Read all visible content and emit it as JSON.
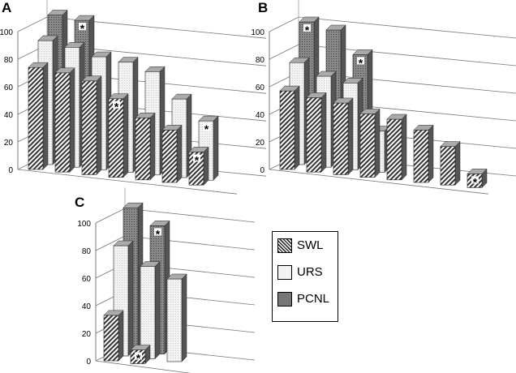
{
  "chart_data": [
    {
      "type": "bar",
      "title": "A",
      "ylim": [
        0,
        100
      ],
      "yticks": [
        0,
        20,
        40,
        60,
        80,
        100
      ],
      "series": [
        {
          "name": "SWL",
          "values": [
            74,
            72,
            68,
            57,
            45,
            38,
            24
          ],
          "stars": [
            3,
            6
          ]
        },
        {
          "name": "URS",
          "values": [
            90,
            87,
            82,
            80,
            75,
            57,
            43
          ],
          "stars": [
            6
          ]
        },
        {
          "name": "PCNL",
          "values": [
            105,
            103,
            null,
            null,
            null,
            null,
            null
          ],
          "stars": [
            1
          ]
        }
      ]
    },
    {
      "type": "bar",
      "title": "B",
      "ylim": [
        0,
        100
      ],
      "yticks": [
        0,
        20,
        40,
        60,
        80,
        100
      ],
      "series": [
        {
          "name": "SWL",
          "values": [
            57,
            54,
            52,
            46,
            44,
            38,
            28,
            10
          ],
          "stars": [
            7
          ]
        },
        {
          "name": "URS",
          "values": [
            74,
            66,
            63,
            30,
            null,
            null,
            null,
            null
          ],
          "stars": [
            3
          ]
        },
        {
          "name": "PCNL",
          "values": [
            100,
            96,
            80,
            null,
            null,
            null,
            null,
            null
          ],
          "stars": [
            0,
            2
          ]
        }
      ]
    },
    {
      "type": "bar",
      "title": "C",
      "ylim": [
        0,
        100
      ],
      "yticks": [
        0,
        20,
        40,
        60,
        80,
        100
      ],
      "series": [
        {
          "name": "SWL",
          "values": [
            33,
            10,
            null
          ],
          "stars": [
            1
          ]
        },
        {
          "name": "URS",
          "values": [
            80,
            67,
            60
          ],
          "stars": []
        },
        {
          "name": "PCNL",
          "values": [
            104,
            93,
            null
          ],
          "stars": [
            1
          ]
        }
      ]
    }
  ],
  "legend": [
    {
      "label": "SWL"
    },
    {
      "label": "URS"
    },
    {
      "label": "PCNL"
    }
  ],
  "star_symbol": "*"
}
